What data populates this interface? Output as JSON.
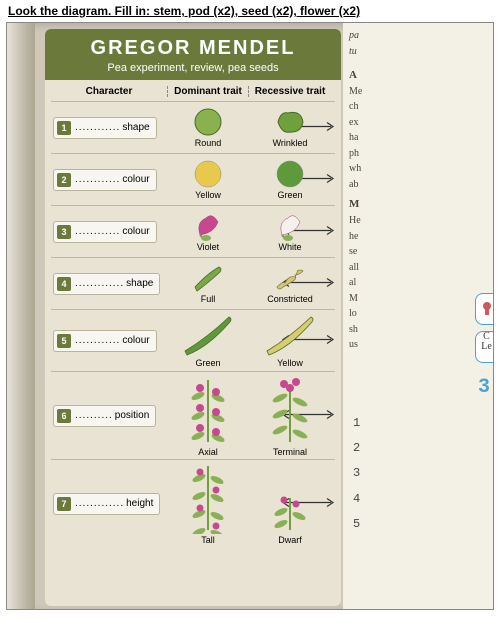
{
  "instruction": "Look the diagram. Fill in: stem, pod (x2), seed (x2), flower (x2)",
  "header": {
    "title": "GREGOR MENDEL",
    "subtitle": "Pea experiment, review, pea seeds"
  },
  "columns": {
    "character": "Character",
    "dominant": "Dominant trait",
    "recessive": "Recessive trait"
  },
  "traits": [
    {
      "num": "1",
      "dots": "............",
      "character": "shape",
      "dominant": "Round",
      "recessive": "Wrinkled",
      "dom_color": "#89b24e",
      "rec_color": "#6fa03b",
      "row_h": "short",
      "dom_svg": "round",
      "rec_svg": "wrinkled"
    },
    {
      "num": "2",
      "dots": "............",
      "character": "colour",
      "dominant": "Yellow",
      "recessive": "Green",
      "dom_color": "#e8c94c",
      "rec_color": "#5f9a3a",
      "row_h": "short",
      "dom_svg": "circle",
      "rec_svg": "circle"
    },
    {
      "num": "3",
      "dots": "............",
      "character": "colour",
      "dominant": "Violet",
      "recessive": "White",
      "dom_color": "#c84890",
      "rec_color": "#f4f2ea",
      "row_h": "short",
      "dom_svg": "flower",
      "rec_svg": "flower"
    },
    {
      "num": "4",
      "dots": ".............",
      "character": "shape",
      "dominant": "Full",
      "recessive": "Constricted",
      "dom_color": "#7ba847",
      "rec_color": "#d2c87c",
      "row_h": "short",
      "dom_svg": "podfull",
      "rec_svg": "podconst"
    },
    {
      "num": "5",
      "dots": "............",
      "character": "colour",
      "dominant": "Green",
      "recessive": "Yellow",
      "dom_color": "#5f9a3a",
      "rec_color": "#d9cb6f",
      "row_h": "med",
      "dom_svg": "podfull",
      "rec_svg": "podfull"
    },
    {
      "num": "6",
      "dots": "..........",
      "character": "position",
      "dominant": "Axial",
      "recessive": "Terminal",
      "dom_color": "#6fa03b",
      "rec_color": "#6fa03b",
      "row_h": "tall",
      "dom_svg": "axial",
      "rec_svg": "terminal"
    },
    {
      "num": "7",
      "dots": ".............",
      "character": "height",
      "dominant": "Tall",
      "recessive": "Dwarf",
      "dom_color": "#6fa03b",
      "rec_color": "#6fa03b",
      "row_h": "tall",
      "dom_svg": "tallplant",
      "rec_svg": "dwarfplant"
    }
  ],
  "cut_text": {
    "l1": "pa",
    "l2": "tu",
    "l3": "A",
    "l4": "Me",
    "l5": "ch",
    "l6": "ex",
    "l7": "ha",
    "l8": "ph",
    "l9": "wh",
    "l10": "ab",
    "h2": "M",
    "m1": "He",
    "m2": "he",
    "m3": "se",
    "m4": "all",
    "m5": "al",
    "m6": "M",
    "m7": "lo",
    "m8": "sh",
    "m9": "us",
    "tab1a": "C",
    "tab1b": "Le"
  },
  "side_nums": [
    "1",
    "2",
    "3",
    "4",
    "5"
  ]
}
